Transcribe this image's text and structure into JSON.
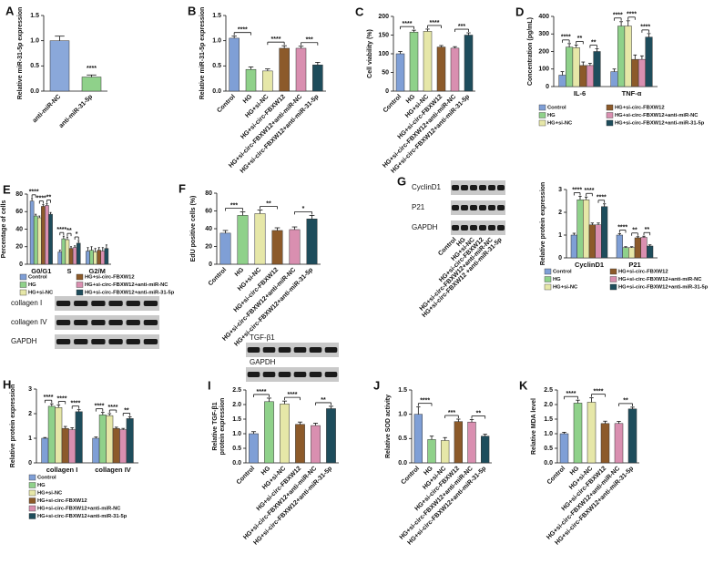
{
  "chart_data": [
    {
      "type": "bar",
      "panel": "A",
      "ylabel": "Relative miR-31-5p expression",
      "categories": [
        "anti-miR-NC",
        "anti-miR-31-5p"
      ],
      "values": [
        1.0,
        0.28
      ],
      "errors": [
        0.09,
        0.04
      ],
      "colors": [
        "#8aa8da",
        "#8fd18a"
      ],
      "ylim": [
        0,
        1.5
      ],
      "yticks": [
        {
          "value": 0,
          "label": "0.0"
        },
        {
          "value": 0.5,
          "label": "0.5"
        },
        {
          "value": 1,
          "label": "1.0"
        },
        {
          "value": 1.5,
          "label": "1.5"
        }
      ],
      "significance": [
        "****"
      ]
    },
    {
      "type": "bar",
      "panel": "B",
      "ylabel": "Relative miR-31-5p expression",
      "categories": [
        "Control",
        "HG",
        "HG+si-NC",
        "HG+si-circ-FBXW12",
        "HG+si-circ-FBXW12+anti-miR-NC",
        "HG+si-circ-FBXW12+anti-miR-31-5p"
      ],
      "values": [
        1.05,
        0.43,
        0.4,
        0.85,
        0.85,
        0.52
      ],
      "errors": [
        0.04,
        0.05,
        0.04,
        0.05,
        0.04,
        0.05
      ],
      "colors": [
        "#7f9fd6",
        "#8fd18a",
        "#e6e7a8",
        "#8c5a2a",
        "#d98fb0",
        "#1e4d5c"
      ],
      "ylim": [
        0,
        1.5
      ],
      "yticks": [
        {
          "value": 0,
          "label": "0.0"
        },
        {
          "value": 0.5,
          "label": "0.5"
        },
        {
          "value": 1,
          "label": "1.0"
        },
        {
          "value": 1.5,
          "label": "1.5"
        }
      ],
      "significance": [
        "****",
        "****",
        "***"
      ]
    },
    {
      "type": "bar",
      "panel": "C",
      "ylabel": "Cell viability (%)",
      "categories": [
        "Control",
        "HG",
        "HG+si-NC",
        "HG+si-circ-FBXW12",
        "HG+si-circ-FBXW12+anti-miR-NC",
        "HG+si-circ-FBXW12+anti-miR-31-5p"
      ],
      "values": [
        100,
        158,
        160,
        118,
        115,
        150
      ],
      "errors": [
        6,
        5,
        6,
        4,
        4,
        6
      ],
      "colors": [
        "#7f9fd6",
        "#8fd18a",
        "#e6e7a8",
        "#8c5a2a",
        "#d98fb0",
        "#1e4d5c"
      ],
      "ylim": [
        0,
        200
      ],
      "yticks": [
        0,
        50,
        100,
        150,
        200
      ],
      "significance": [
        "****",
        "****",
        "***"
      ]
    },
    {
      "type": "bar",
      "panel": "D",
      "ylabel": "Concentration (pg/mL)",
      "categories": [
        "IL-6",
        "TNF-α"
      ],
      "series": [
        {
          "name": "Control",
          "color": "#7f9fd6",
          "values": [
            65,
            85
          ],
          "errors": [
            20,
            15
          ]
        },
        {
          "name": "HG",
          "color": "#8fd18a",
          "values": [
            225,
            345
          ],
          "errors": [
            20,
            25
          ]
        },
        {
          "name": "HG+si-NC",
          "color": "#e6e7a8",
          "values": [
            222,
            345
          ],
          "errors": [
            15,
            30
          ]
        },
        {
          "name": "HG+si-circ-FBXW12",
          "color": "#8c5a2a",
          "values": [
            120,
            155
          ],
          "errors": [
            20,
            25
          ]
        },
        {
          "name": "HG+si-circ-FBXW12+anti-miR-NC",
          "color": "#d98fb0",
          "values": [
            120,
            155
          ],
          "errors": [
            12,
            20
          ]
        },
        {
          "name": "HG+si-circ-FBXW12+anti-miR-31-5p",
          "color": "#1e4d5c",
          "values": [
            200,
            282
          ],
          "errors": [
            15,
            20
          ]
        }
      ],
      "ylim": [
        0,
        400
      ],
      "yticks": [
        0,
        100,
        200,
        300,
        400
      ],
      "significance": [
        [
          "****",
          "**",
          "**"
        ],
        [
          "****",
          "****",
          "****"
        ]
      ]
    },
    {
      "type": "bar",
      "panel": "E",
      "ylabel": "Percentage of cells",
      "categories": [
        "G0/G1",
        "S",
        "G2/M"
      ],
      "series": [
        {
          "name": "Control",
          "color": "#7f9fd6",
          "values": [
            72,
            14,
            15
          ],
          "errors": [
            3,
            2,
            4
          ]
        },
        {
          "name": "HG",
          "color": "#8fd18a",
          "values": [
            55,
            29,
            16
          ],
          "errors": [
            2,
            3,
            4
          ]
        },
        {
          "name": "HG+si-NC",
          "color": "#e6e7a8",
          "values": [
            53,
            28,
            14
          ],
          "errors": [
            2,
            3,
            4
          ]
        },
        {
          "name": "HG+si-circ-FBXW12",
          "color": "#8c5a2a",
          "values": [
            66,
            18,
            16
          ],
          "errors": [
            2,
            2,
            3
          ]
        },
        {
          "name": "HG+si-circ-FBXW12+anti-miR-NC",
          "color": "#d98fb0",
          "values": [
            67,
            19,
            15
          ],
          "errors": [
            2,
            2,
            4
          ]
        },
        {
          "name": "HG+si-circ-FBXW12+anti-miR-31-5p",
          "color": "#1e4d5c",
          "values": [
            57,
            24,
            18
          ],
          "errors": [
            2,
            3,
            4
          ]
        }
      ],
      "ylim": [
        0,
        80
      ],
      "yticks": [
        0,
        20,
        40,
        60,
        80
      ],
      "significance": [
        [
          "****",
          "****",
          "**"
        ],
        [
          "****",
          "**",
          "*"
        ]
      ]
    },
    {
      "type": "bar",
      "panel": "F",
      "ylabel": "EdU positive cells (%)",
      "categories": [
        "Control",
        "HG",
        "HG+si-NC",
        "HG+si-circ-FBXW12",
        "HG+si-circ-FBXW12+anti-miR-NC",
        "HG+si-circ-FBXW12+anti-miR-31-5p"
      ],
      "values": [
        35,
        55,
        57,
        38,
        39,
        51
      ],
      "errors": [
        3,
        4,
        4,
        3,
        3,
        4
      ],
      "colors": [
        "#7f9fd6",
        "#8fd18a",
        "#e6e7a8",
        "#8c5a2a",
        "#d98fb0",
        "#1e4d5c"
      ],
      "ylim": [
        0,
        80
      ],
      "yticks": [
        0,
        20,
        40,
        60,
        80
      ],
      "significance": [
        "***",
        "**",
        "*"
      ]
    },
    {
      "type": "bar",
      "ylabel": "Relative protein expression",
      "categories": [
        "CyclinD1",
        "P21"
      ],
      "series": [
        {
          "name": "Control",
          "color": "#7f9fd6",
          "values": [
            1.0,
            1.0
          ],
          "errors": [
            0.08,
            0.06
          ]
        },
        {
          "name": "HG",
          "color": "#8fd18a",
          "values": [
            2.55,
            0.45
          ],
          "errors": [
            0.15,
            0.04
          ]
        },
        {
          "name": "HG+si-NC",
          "color": "#e6e7a8",
          "values": [
            2.55,
            0.45
          ],
          "errors": [
            0.12,
            0.04
          ]
        },
        {
          "name": "HG+si-circ-FBXW12",
          "color": "#8c5a2a",
          "values": [
            1.45,
            0.88
          ],
          "errors": [
            0.08,
            0.05
          ]
        },
        {
          "name": "HG+si-circ-FBXW12+anti-miR-NC",
          "color": "#d98fb0",
          "values": [
            1.45,
            0.9
          ],
          "errors": [
            0.08,
            0.05
          ]
        },
        {
          "name": "HG+si-circ-FBXW12+anti-miR-31-5p",
          "color": "#1e4d5c",
          "values": [
            2.25,
            0.52
          ],
          "errors": [
            0.12,
            0.05
          ]
        }
      ],
      "ylim": [
        0,
        3
      ],
      "yticks": [
        0,
        1,
        2,
        3
      ],
      "significance": [
        [
          "****",
          "****",
          "****"
        ],
        [
          "****",
          "**",
          "**"
        ]
      ]
    },
    {
      "type": "bar",
      "panel": "H",
      "ylabel": "Relative protein expression",
      "categories": [
        "collagen I",
        "collagen IV"
      ],
      "series": [
        {
          "name": "Control",
          "color": "#7f9fd6",
          "values": [
            1.0,
            1.0
          ],
          "errors": [
            0.03,
            0.05
          ]
        },
        {
          "name": "HG",
          "color": "#8fd18a",
          "values": [
            2.3,
            1.95
          ],
          "errors": [
            0.1,
            0.1
          ]
        },
        {
          "name": "HG+si-NC",
          "color": "#e6e7a8",
          "values": [
            2.25,
            1.92
          ],
          "errors": [
            0.1,
            0.08
          ]
        },
        {
          "name": "HG+si-circ-FBXW12",
          "color": "#8c5a2a",
          "values": [
            1.4,
            1.4
          ],
          "errors": [
            0.08,
            0.05
          ]
        },
        {
          "name": "HG+si-circ-FBXW12+anti-miR-NC",
          "color": "#d98fb0",
          "values": [
            1.35,
            1.35
          ],
          "errors": [
            0.08,
            0.05
          ]
        },
        {
          "name": "HG+si-circ-FBXW12+anti-miR-31-5p",
          "color": "#1e4d5c",
          "values": [
            2.08,
            1.8
          ],
          "errors": [
            0.08,
            0.07
          ]
        }
      ],
      "ylim": [
        0,
        3
      ],
      "yticks": [
        0,
        1,
        2,
        3
      ],
      "significance": [
        [
          "****",
          "****",
          "****"
        ],
        [
          "****",
          "****",
          "**"
        ]
      ]
    },
    {
      "type": "bar",
      "panel": "I",
      "ylabel": [
        "Relative TGF-β1",
        "protein expression"
      ],
      "categories": [
        "Control",
        "HG",
        "HG+si-NC",
        "HG+si-circ-FBXW12",
        "HG+si-circ-FBXW12+anti-miR-NC",
        "HG+si-circ-FBXW12+anti-miR-31-5p"
      ],
      "values": [
        1.0,
        2.1,
        2.02,
        1.32,
        1.28,
        1.86
      ],
      "errors": [
        0.07,
        0.12,
        0.1,
        0.08,
        0.08,
        0.08
      ],
      "colors": [
        "#7f9fd6",
        "#8fd18a",
        "#e6e7a8",
        "#8c5a2a",
        "#d98fb0",
        "#1e4d5c"
      ],
      "ylim": [
        0,
        2.5
      ],
      "yticks": [
        {
          "value": 0,
          "label": "0.0"
        },
        {
          "value": 0.5,
          "label": "0.5"
        },
        {
          "value": 1,
          "label": "1.0"
        },
        {
          "value": 1.5,
          "label": "1.5"
        },
        {
          "value": 2,
          "label": "2.0"
        },
        {
          "value": 2.5,
          "label": "2.5"
        }
      ],
      "significance": [
        "****",
        "****",
        "**"
      ]
    },
    {
      "type": "bar",
      "panel": "J",
      "ylabel": "Relative SOD activity",
      "categories": [
        "Control",
        "HG",
        "HG+si-NC",
        "HG+si-circ-FBXW12",
        "HG+si-circ-FBXW12+anti-miR-NC",
        "HG+si-circ-FBXW12+anti-miR-31-5p"
      ],
      "values": [
        1.0,
        0.48,
        0.46,
        0.85,
        0.84,
        0.55
      ],
      "errors": [
        0.15,
        0.07,
        0.06,
        0.05,
        0.05,
        0.04
      ],
      "colors": [
        "#7f9fd6",
        "#8fd18a",
        "#e6e7a8",
        "#8c5a2a",
        "#d98fb0",
        "#1e4d5c"
      ],
      "ylim": [
        0,
        1.5
      ],
      "yticks": [
        {
          "value": 0,
          "label": "0.0"
        },
        {
          "value": 0.5,
          "label": "0.5"
        },
        {
          "value": 1,
          "label": "1.0"
        },
        {
          "value": 1.5,
          "label": "1.5"
        }
      ],
      "significance": [
        "****",
        "***",
        "**"
      ]
    },
    {
      "type": "bar",
      "panel": "K",
      "ylabel": "Relative MDA level",
      "categories": [
        "Control",
        "HG",
        "HG+si-NC",
        "HG+si-circ-FBXW12",
        "HG+si-circ-FBXW12+anti-miR-NC",
        "HG+si-circ-FBXW12+anti-miR-31-5p"
      ],
      "values": [
        1.0,
        2.05,
        2.08,
        1.35,
        1.35,
        1.85
      ],
      "errors": [
        0.05,
        0.1,
        0.15,
        0.08,
        0.07,
        0.06
      ],
      "colors": [
        "#7f9fd6",
        "#8fd18a",
        "#e6e7a8",
        "#8c5a2a",
        "#d98fb0",
        "#1e4d5c"
      ],
      "ylim": [
        0,
        2.5
      ],
      "yticks": [
        {
          "value": 0,
          "label": "0.0"
        },
        {
          "value": 0.5,
          "label": "0.5"
        },
        {
          "value": 1,
          "label": "1.0"
        },
        {
          "value": 1.5,
          "label": "1.5"
        },
        {
          "value": 2,
          "label": "2.0"
        },
        {
          "value": 2.5,
          "label": "2.5"
        }
      ],
      "significance": [
        "****",
        "****",
        "**"
      ]
    }
  ],
  "blots": [
    {
      "rows": [
        "collagen I",
        "collagen IV",
        "GAPDH"
      ]
    },
    {
      "panel": "G",
      "rows": [
        "CyclinD1",
        "P21",
        "GAPDH"
      ],
      "lanes": [
        "Control",
        "HG",
        "HG+si-NC",
        "HG+si-circ-FBXW12",
        "HG+si-circ-FBXW12+anti-miR-NC",
        "HG+si-circ-FBXW12 +anti-miR-31-5p"
      ]
    },
    {
      "rows": [
        "TGF-β1",
        "GAPDH"
      ]
    }
  ]
}
